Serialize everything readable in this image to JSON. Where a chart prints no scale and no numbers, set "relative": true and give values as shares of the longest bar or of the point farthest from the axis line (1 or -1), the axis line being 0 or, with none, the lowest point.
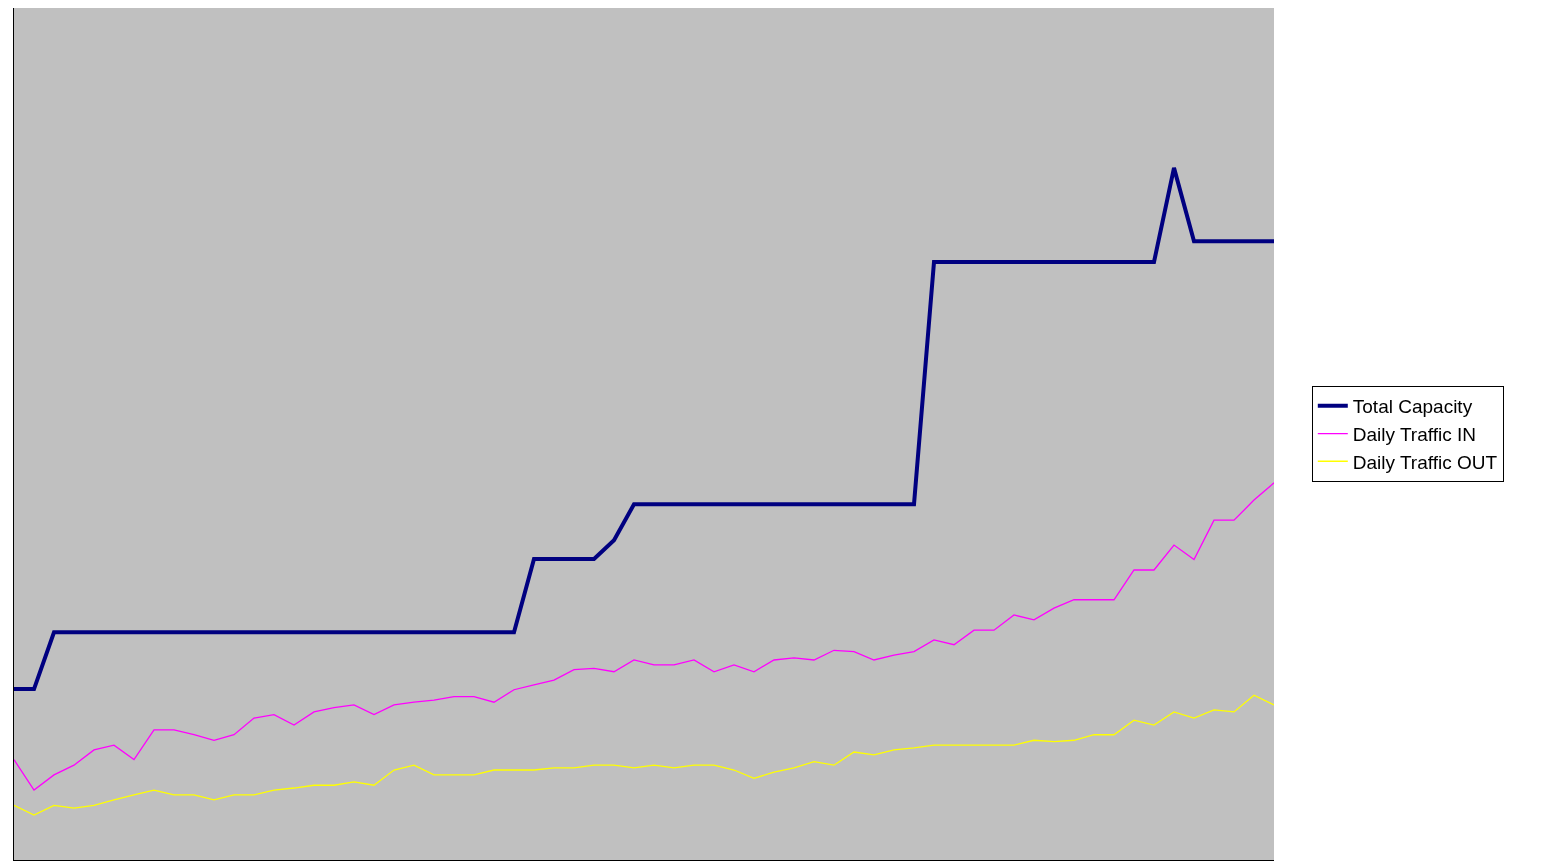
{
  "chart_data": {
    "type": "line",
    "relative": true,
    "legend": "right",
    "grid": false,
    "marker": "none",
    "line_style": "solid",
    "categories": [
      null,
      null,
      null,
      null,
      null,
      null,
      null,
      null,
      null,
      null,
      null,
      null,
      null,
      null,
      null,
      null,
      null,
      null,
      null,
      null,
      null,
      null,
      null,
      null,
      null,
      null,
      null,
      null,
      null,
      null,
      null,
      null,
      null,
      null,
      null,
      null,
      null,
      null,
      null,
      null,
      null,
      null,
      null,
      null,
      null,
      null,
      null,
      null,
      null,
      null,
      null,
      null,
      null,
      null,
      null,
      null,
      null,
      null,
      null,
      null,
      null,
      null,
      null,
      null
    ],
    "series": [
      {
        "name": "Total Capacity",
        "color": "#000080",
        "values": [
          0.247,
          0.247,
          0.329,
          0.329,
          0.329,
          0.329,
          0.329,
          0.329,
          0.329,
          0.329,
          0.329,
          0.329,
          0.329,
          0.329,
          0.329,
          0.329,
          0.329,
          0.329,
          0.329,
          0.329,
          0.329,
          0.329,
          0.329,
          0.329,
          0.329,
          0.329,
          0.435,
          0.435,
          0.435,
          0.435,
          0.462,
          0.514,
          0.514,
          0.514,
          0.514,
          0.514,
          0.514,
          0.514,
          0.514,
          0.514,
          0.514,
          0.514,
          0.514,
          0.514,
          0.514,
          0.514,
          0.864,
          0.864,
          0.864,
          0.864,
          0.864,
          0.864,
          0.864,
          0.864,
          0.864,
          0.864,
          0.864,
          0.864,
          1.0,
          0.894,
          0.894,
          0.894,
          0.894,
          0.894
        ]
      },
      {
        "name": "Daily Traffic IN",
        "color": "#ff00ff",
        "values": [
          0.145,
          0.101,
          0.123,
          0.137,
          0.159,
          0.166,
          0.145,
          0.188,
          0.188,
          0.181,
          0.173,
          0.181,
          0.205,
          0.21,
          0.195,
          0.214,
          0.22,
          0.224,
          0.21,
          0.224,
          0.228,
          0.231,
          0.236,
          0.236,
          0.228,
          0.246,
          0.253,
          0.26,
          0.275,
          0.277,
          0.272,
          0.289,
          0.282,
          0.282,
          0.289,
          0.272,
          0.282,
          0.272,
          0.289,
          0.292,
          0.289,
          0.303,
          0.301,
          0.289,
          0.296,
          0.301,
          0.318,
          0.311,
          0.332,
          0.332,
          0.354,
          0.347,
          0.364,
          0.376,
          0.376,
          0.376,
          0.419,
          0.419,
          0.455,
          0.434,
          0.491,
          0.491,
          0.52,
          0.545
        ]
      },
      {
        "name": "Daily Traffic OUT",
        "color": "#ffff00",
        "values": [
          0.079,
          0.065,
          0.079,
          0.075,
          0.079,
          0.087,
          0.094,
          0.101,
          0.094,
          0.094,
          0.087,
          0.094,
          0.094,
          0.101,
          0.104,
          0.108,
          0.108,
          0.113,
          0.108,
          0.13,
          0.137,
          0.123,
          0.123,
          0.123,
          0.13,
          0.13,
          0.13,
          0.133,
          0.133,
          0.137,
          0.137,
          0.133,
          0.137,
          0.133,
          0.137,
          0.137,
          0.13,
          0.118,
          0.127,
          0.133,
          0.142,
          0.137,
          0.156,
          0.152,
          0.159,
          0.162,
          0.166,
          0.166,
          0.166,
          0.166,
          0.166,
          0.173,
          0.171,
          0.173,
          0.181,
          0.181,
          0.202,
          0.195,
          0.214,
          0.205,
          0.217,
          0.214,
          0.238,
          0.224
        ]
      }
    ]
  }
}
